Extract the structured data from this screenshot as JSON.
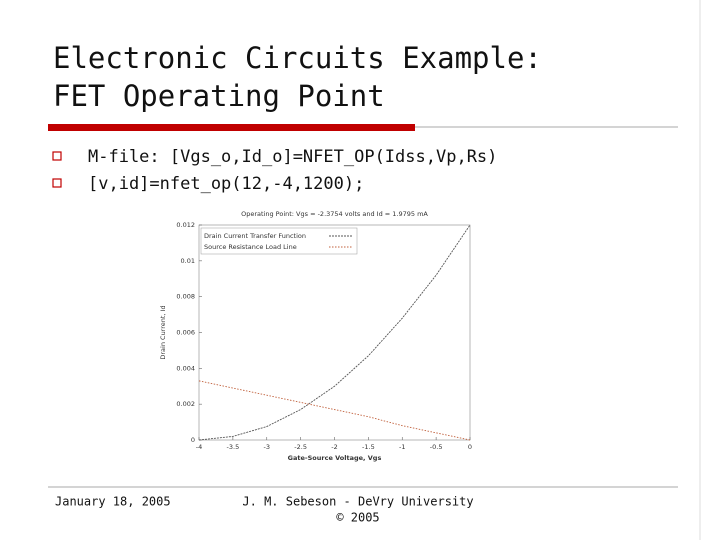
{
  "slide": {
    "title_lines": [
      "Electronic Circuits Example:",
      "FET Operating Point"
    ],
    "bullets": [
      "M-file: [Vgs_o,Id_o]=NFET_OP(Idss,Vp,Rs)",
      "[v,id]=nfet_op(12,-4,1200);"
    ],
    "footer": {
      "date": "January 18, 2005",
      "author_lines": [
        "J. M. Sebeson - DeVry University",
        "© 2005"
      ]
    }
  },
  "chart_data": {
    "type": "line",
    "title": "Operating Point: Vgs = -2.3754 volts and Id = 1.9795 mA",
    "x_label": "Gate-Source Voltage, Vgs",
    "y_label": "Drain Current, Id",
    "x": [
      -4,
      -3.5,
      -3,
      -2.5,
      -2,
      -1.5,
      -1,
      -0.5,
      0
    ],
    "series": [
      {
        "name": "Drain Current Transfer Function",
        "color": "#555555",
        "values": [
          0,
          0.0002,
          0.00075,
          0.0017,
          0.003,
          0.0047,
          0.0068,
          0.0092,
          0.012
        ]
      },
      {
        "name": "Source Resistance Load Line",
        "color": "#c0603c",
        "values": [
          0.0033,
          0.0029,
          0.0025,
          0.0021,
          0.0017,
          0.0013,
          0.0008,
          0.0004,
          0
        ]
      }
    ],
    "xlim": [
      -4,
      0
    ],
    "xticks": [
      -4,
      -3.5,
      -3,
      -2.5,
      -2,
      -1.5,
      -1,
      -0.5,
      0
    ],
    "ylim": [
      0,
      0.012
    ],
    "yticks": [
      0,
      0.002,
      0.004,
      0.006,
      0.008,
      0.01,
      0.012
    ],
    "legend": "upper-left"
  }
}
